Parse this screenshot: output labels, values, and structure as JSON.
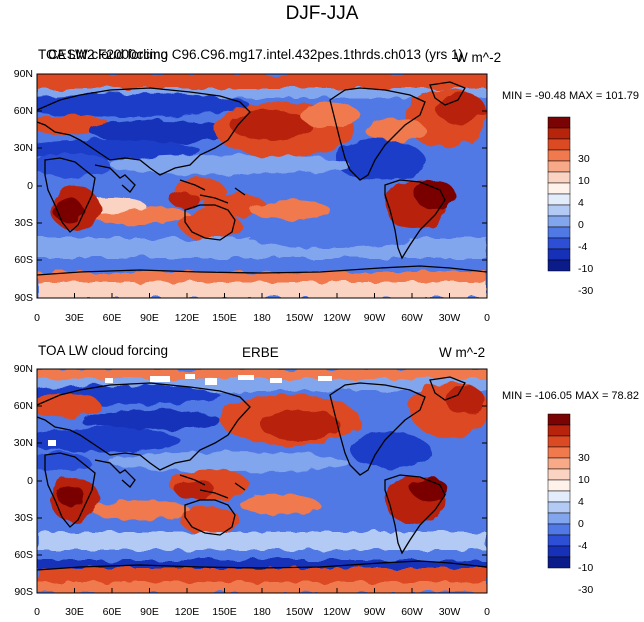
{
  "figure_title": "DJF-JJA",
  "panels": [
    {
      "left_title": "TOA LW cloud forcing",
      "center_title": "CESM2 F2000climo C96.C96.mg17.intel.432pes.1thrds.ch013 (yrs 1)",
      "right_title": "W m^-2",
      "min_max": "MIN = -90.48 MAX = 101.79",
      "lat_labels": [
        "90N",
        "60N",
        "30N",
        "0",
        "30S",
        "60S",
        "90S"
      ],
      "lon_labels": [
        "0",
        "30E",
        "60E",
        "90E",
        "120E",
        "150E",
        "180",
        "150W",
        "120W",
        "90W",
        "60W",
        "30W",
        "0"
      ],
      "colorbar_labels": [
        "30",
        "10",
        "4",
        "0",
        "-4",
        "-10",
        "-30"
      ]
    },
    {
      "left_title": "TOA LW cloud forcing",
      "center_title": "ERBE",
      "right_title": "W m^-2",
      "min_max": "MIN = -106.05 MAX =  78.82",
      "lat_labels": [
        "90N",
        "60N",
        "30N",
        "0",
        "30S",
        "60S",
        "90S"
      ],
      "lon_labels": [
        "0",
        "30E",
        "60E",
        "90E",
        "120E",
        "150E",
        "180",
        "150W",
        "120W",
        "90W",
        "60W",
        "30W",
        "0"
      ],
      "colorbar_labels": [
        "30",
        "10",
        "4",
        "0",
        "-4",
        "-10",
        "-30"
      ]
    }
  ],
  "colorbar_colors": [
    "#7a0403",
    "#b8230b",
    "#dc4a24",
    "#f07a4e",
    "#f7a988",
    "#fbd3c2",
    "#fff2ea",
    "#e3ecfb",
    "#b3caf5",
    "#82a6ee",
    "#5179e6",
    "#2c4fd6",
    "#1631b8",
    "#0b1c8a"
  ],
  "field_colors": {
    "deep_red": "#b8230b",
    "red": "#dc4a24",
    "orange": "#f07a4e",
    "pale": "#f7d1c0",
    "white": "#fff2ea",
    "light_blue": "#b3caf5",
    "blue": "#5179e6",
    "dark_blue": "#1d3cc8",
    "navy": "#0b1c8a"
  }
}
